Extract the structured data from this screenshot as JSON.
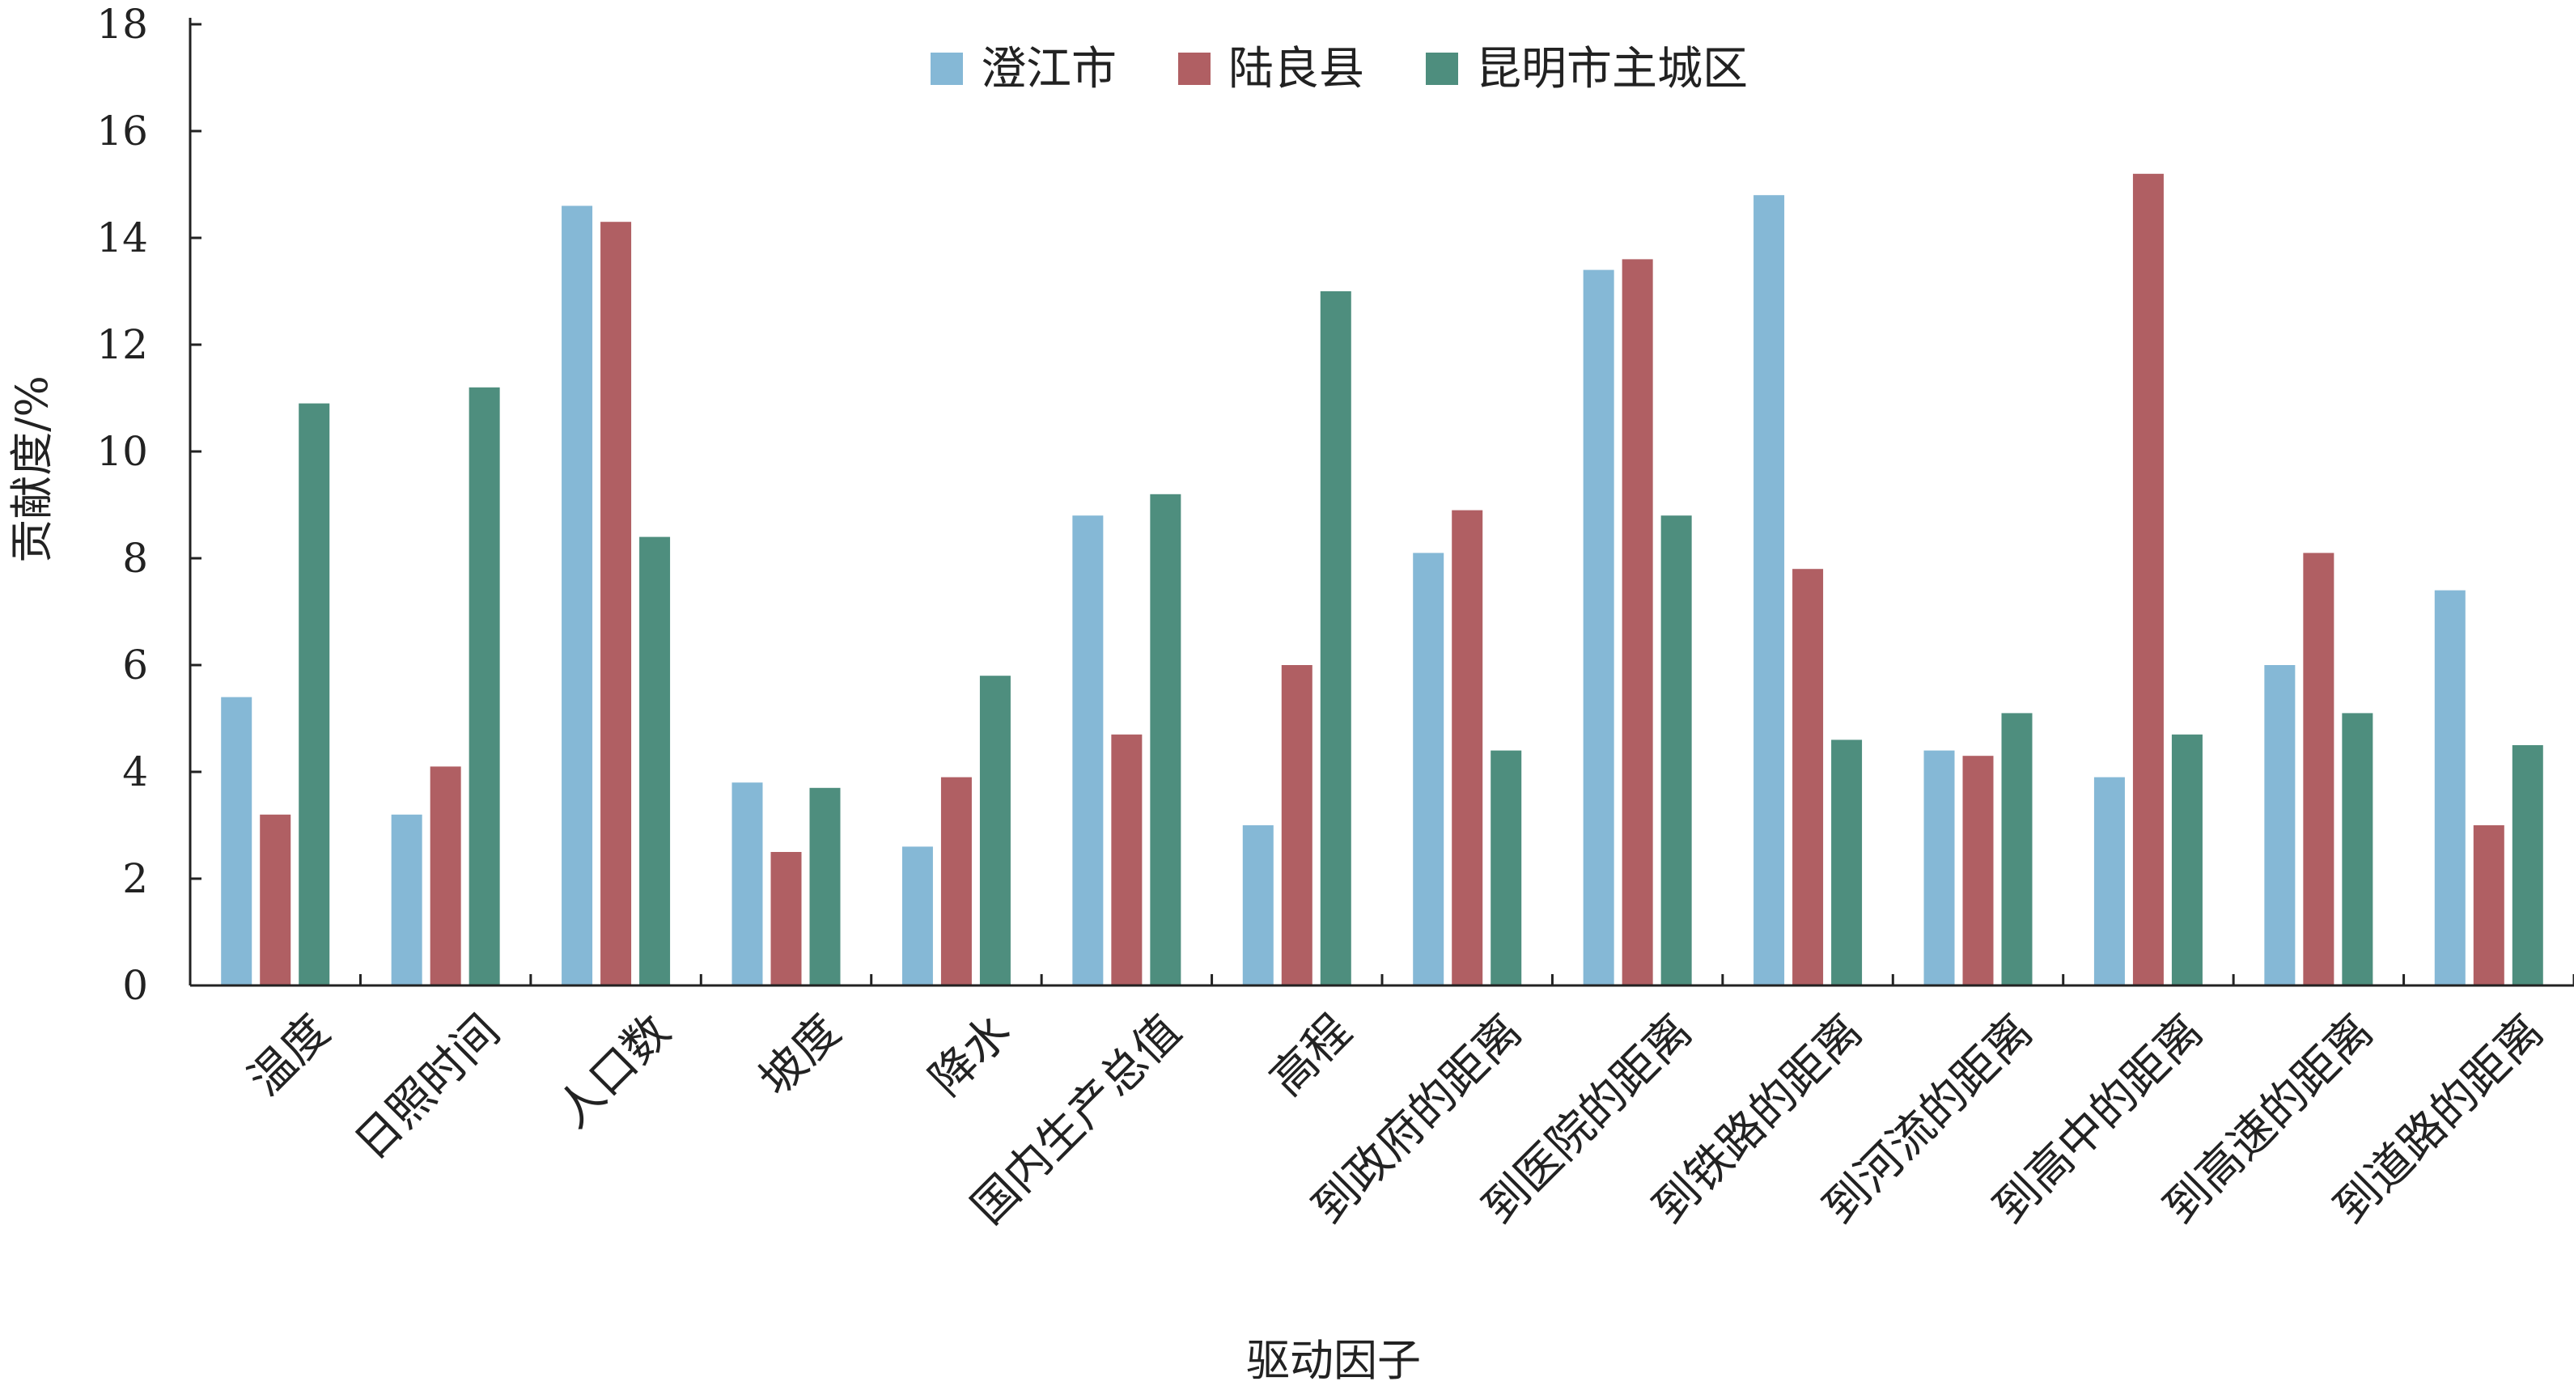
{
  "chart_data": {
    "type": "bar",
    "xlabel": "驱动因子",
    "ylabel": "贡献度/%",
    "ylim": [
      0,
      18
    ],
    "yticks": [
      0,
      2,
      4,
      6,
      8,
      10,
      12,
      14,
      16,
      18
    ],
    "grid": false,
    "legend_position": "top-center",
    "categories": [
      "温度",
      "日照时间",
      "人口数",
      "坡度",
      "降水",
      "国内生产总值",
      "高程",
      "到政府的距离",
      "到医院的距离",
      "到铁路的距离",
      "到河流的距离",
      "到高中的距离",
      "到高速的距离",
      "到道路的距离"
    ],
    "series": [
      {
        "name": "澄江市",
        "color": "#85b8d6",
        "values": [
          5.4,
          3.2,
          14.6,
          3.8,
          2.6,
          8.8,
          3.0,
          8.1,
          13.4,
          14.8,
          4.4,
          3.9,
          6.0,
          7.4
        ]
      },
      {
        "name": "陆良县",
        "color": "#b05f63",
        "values": [
          3.2,
          4.1,
          14.3,
          2.5,
          3.9,
          4.7,
          6.0,
          8.9,
          13.6,
          7.8,
          4.3,
          15.2,
          8.1,
          3.0
        ]
      },
      {
        "name": "昆明市主城区",
        "color": "#4e8e7e",
        "values": [
          10.9,
          11.2,
          8.4,
          3.7,
          5.8,
          9.2,
          13.0,
          4.4,
          8.8,
          4.6,
          5.1,
          4.7,
          5.1,
          4.5
        ]
      }
    ]
  }
}
